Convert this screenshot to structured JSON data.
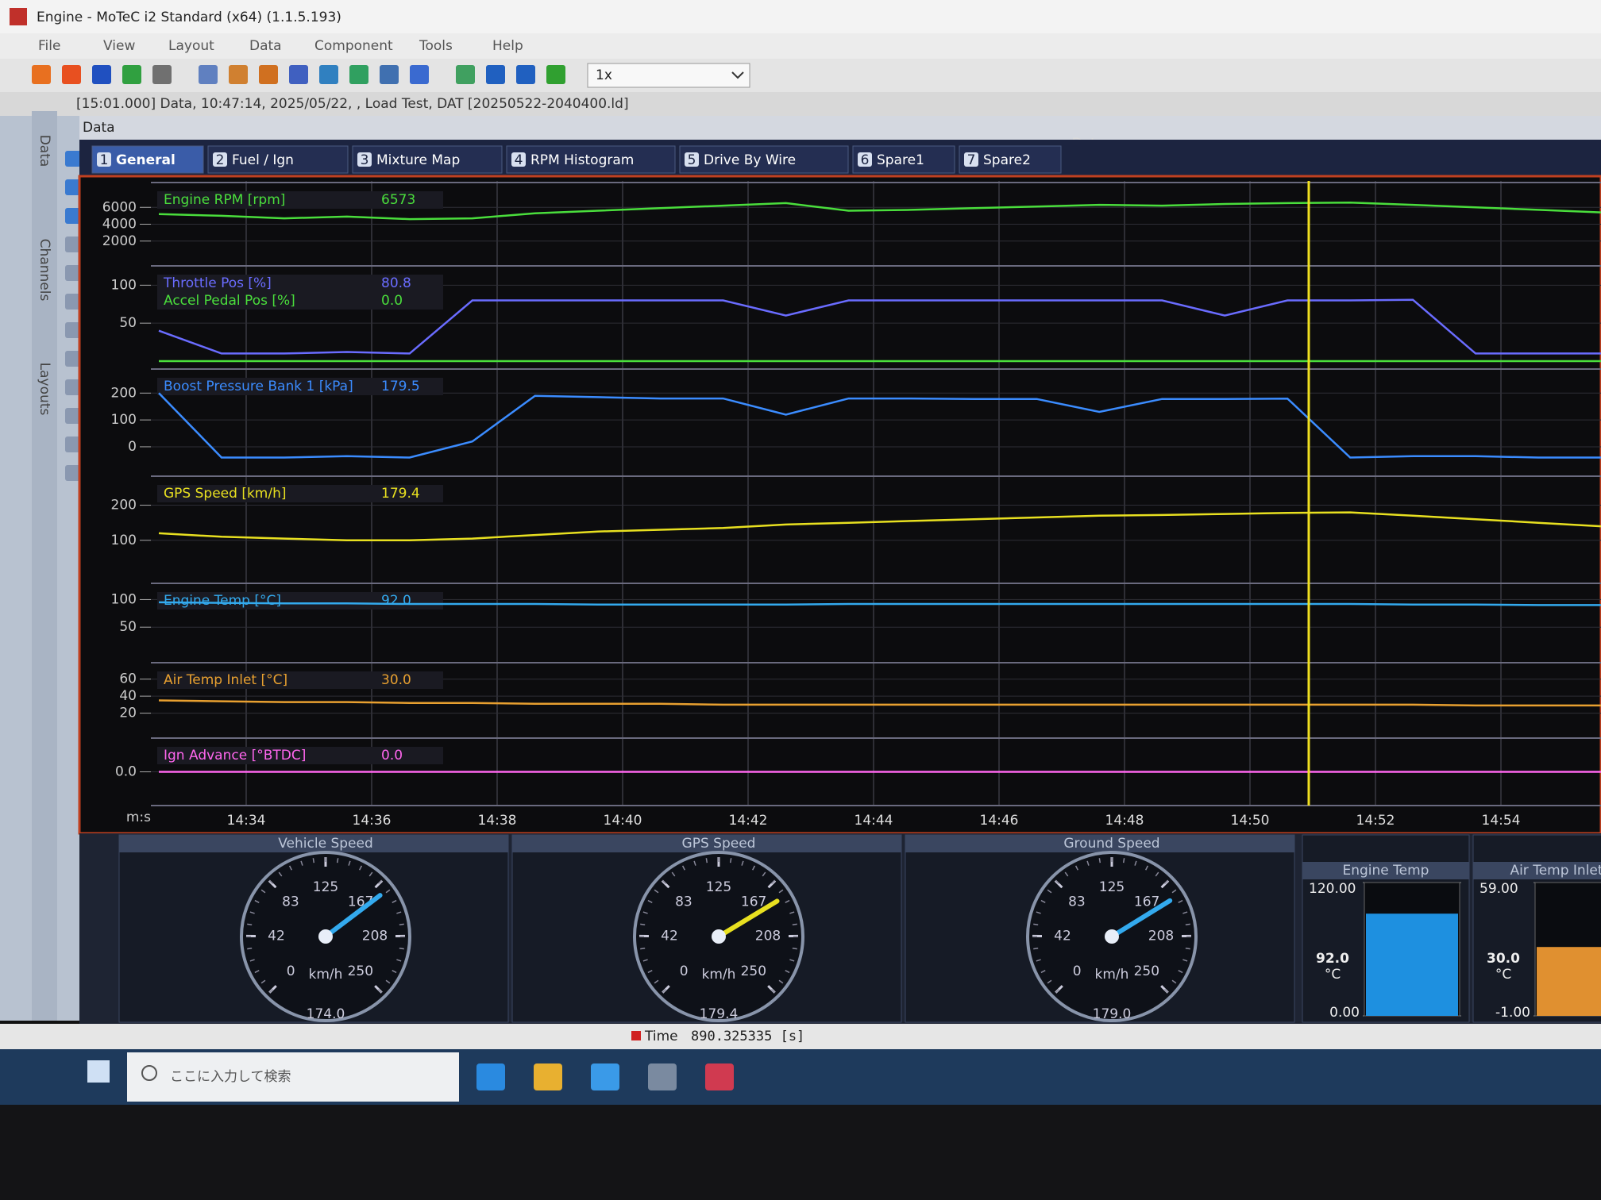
{
  "window": {
    "title": "Engine - MoTeC i2 Standard (x64) (1.1.5.193)",
    "menu": [
      "File",
      "View",
      "Layout",
      "Data",
      "Component",
      "Tools",
      "Help"
    ],
    "playback_speed": "1x"
  },
  "info_bar": "[15:01.000] Data, 10:47:14, 2025/05/22,  , Load Test, DAT [20250522-2040400.ld]",
  "side_tabs": [
    "Data",
    "Channels",
    "Layouts"
  ],
  "workbook": {
    "label": "Data",
    "title": "Data",
    "tabs": [
      {
        "number": "1",
        "name": "General"
      },
      {
        "number": "2",
        "name": "Fuel / Ign"
      },
      {
        "number": "3",
        "name": "Mixture Map"
      },
      {
        "number": "4",
        "name": "RPM Histogram"
      },
      {
        "number": "5",
        "name": "Drive By Wire"
      },
      {
        "number": "6",
        "name": "Spare1"
      },
      {
        "number": "7",
        "name": "Spare2"
      }
    ]
  },
  "graph": {
    "panels": [
      {
        "ylim": [
          0,
          8000
        ],
        "yticks": [
          2000,
          4000,
          6000
        ],
        "channels": [
          {
            "name": "Engine RPM [rpm]",
            "value": "6573",
            "color": "#4ade3c",
            "trace": [
              5200,
              5000,
              4700,
              4900,
              4600,
              4700,
              5300,
              5600,
              5900,
              6200,
              6500,
              5600,
              5700,
              5900,
              6100,
              6300,
              6200,
              6400,
              6500,
              6573,
              6300,
              6000,
              5700,
              5400
            ]
          }
        ]
      },
      {
        "ylim": [
          0,
          115
        ],
        "yticks": [
          50,
          100
        ],
        "channels": [
          {
            "name": "Throttle Pos [%]",
            "value": "80.8",
            "color": "#6a6cff",
            "trace": [
              40,
              10,
              10,
              12,
              10,
              80,
              80,
              80,
              80,
              80,
              60,
              80,
              80,
              80,
              80,
              80,
              80,
              60,
              80,
              80,
              80.8,
              10,
              10,
              10
            ]
          },
          {
            "name": "Accel Pedal Pos [%]",
            "value": "0.0",
            "color": "#4ade3c",
            "trace": [
              0,
              0,
              0,
              0,
              0,
              0,
              0,
              0,
              0,
              0,
              0,
              0,
              0,
              0,
              0,
              0,
              0,
              0,
              0,
              0,
              0,
              0,
              0,
              0
            ]
          }
        ]
      },
      {
        "ylim": [
          -80,
          260
        ],
        "yticks": [
          0,
          100,
          200
        ],
        "channels": [
          {
            "name": "Boost Pressure Bank 1 [kPa]",
            "value": "179.5",
            "color": "#3b8cff",
            "trace": [
              200,
              -40,
              -40,
              -35,
              -40,
              20,
              190,
              185,
              180,
              180,
              120,
              180,
              180,
              178,
              178,
              130,
              178,
              178,
              179.5,
              -40,
              -35,
              -35,
              -40,
              -40
            ]
          }
        ]
      },
      {
        "ylim": [
          0,
          260
        ],
        "yticks": [
          100,
          200
        ],
        "channels": [
          {
            "name": "GPS Speed [km/h]",
            "value": "179.4",
            "color": "#e8e020",
            "trace": [
              120,
              110,
              105,
              100,
              100,
              105,
              115,
              125,
              130,
              135,
              145,
              150,
              155,
              160,
              165,
              170,
              172,
              175,
              178,
              179.4,
              170,
              160,
              150,
              140
            ]
          }
        ]
      },
      {
        "ylim": [
          0,
          115
        ],
        "yticks": [
          50,
          100
        ],
        "channels": [
          {
            "name": "Engine Temp [°C]",
            "value": "92.0",
            "color": "#33aaee",
            "trace": [
              95,
              94,
              93,
              93,
              92,
              92,
              92,
              91,
              91,
              91,
              91,
              92,
              92,
              92,
              92,
              92,
              92,
              92,
              92,
              92,
              91,
              91,
              90,
              90
            ]
          }
        ]
      },
      {
        "ylim": [
          0,
          70
        ],
        "yticks": [
          20,
          40,
          60
        ],
        "channels": [
          {
            "name": "Air Temp Inlet [°C]",
            "value": "30.0",
            "color": "#e8a030",
            "trace": [
              35,
              34,
              33,
              33,
              32,
              32,
              31,
              31,
              31,
              30,
              30,
              30,
              30,
              30,
              30,
              30,
              30,
              30,
              30,
              30,
              30,
              29,
              29,
              29
            ]
          }
        ]
      },
      {
        "ylim": [
          -10,
          10
        ],
        "yticks": [
          {
            "value": 0,
            "label": "0.0"
          }
        ],
        "channels": [
          {
            "name": "Ign Advance [°BTDC]",
            "value": "0.0",
            "color": "#ff66ee",
            "trace": [
              0,
              0,
              0,
              0,
              0,
              0,
              0,
              0,
              0,
              0,
              0,
              0,
              0,
              0,
              0,
              0,
              0,
              0,
              0,
              0,
              0,
              0,
              0,
              0
            ]
          }
        ]
      }
    ],
    "time_axis": {
      "unit": "m:s",
      "labels": [
        "14:34",
        "14:36",
        "14:38",
        "14:40",
        "14:42",
        "14:44",
        "14:46",
        "14:48",
        "14:50",
        "14:52",
        "14:54"
      ]
    }
  },
  "gauges": [
    {
      "title": "Vehicle Speed",
      "value": 174,
      "value_label": "174.0",
      "unit": "km/h",
      "color": "#33aaee",
      "min": 0,
      "max": 250,
      "ticks": [
        0,
        42,
        83,
        125,
        167,
        208,
        250
      ]
    },
    {
      "title": "GPS Speed",
      "value": 179.4,
      "value_label": "179.4",
      "unit": "km/h",
      "color": "#e8e020",
      "min": 0,
      "max": 250,
      "ticks": [
        0,
        42,
        83,
        125,
        167,
        208,
        250
      ]
    },
    {
      "title": "Ground Speed",
      "value": 179,
      "value_label": "179.0",
      "unit": "km/h",
      "color": "#33aaee",
      "min": 0,
      "max": 250,
      "ticks": [
        0,
        42,
        83,
        125,
        167,
        208,
        250
      ]
    }
  ],
  "bars": [
    {
      "title": "Engine Temp",
      "value": 92,
      "value_label": "92.0",
      "unit": "°C",
      "color": "#1e90e0",
      "min": {
        "value": 0,
        "label": "0.00"
      },
      "max": {
        "value": 120,
        "label": "120.00"
      }
    },
    {
      "title": "Air Temp Inlet",
      "value": 30,
      "value_label": "30.0",
      "unit": "°C",
      "color": "#e09030",
      "min": {
        "value": -1,
        "label": "-1.00"
      },
      "max": {
        "value": 59,
        "label": "59.00"
      }
    }
  ],
  "status": {
    "label": "Time",
    "value": "890.325335 [s]"
  },
  "taskbar": {
    "search": "ここに入力して検索"
  }
}
